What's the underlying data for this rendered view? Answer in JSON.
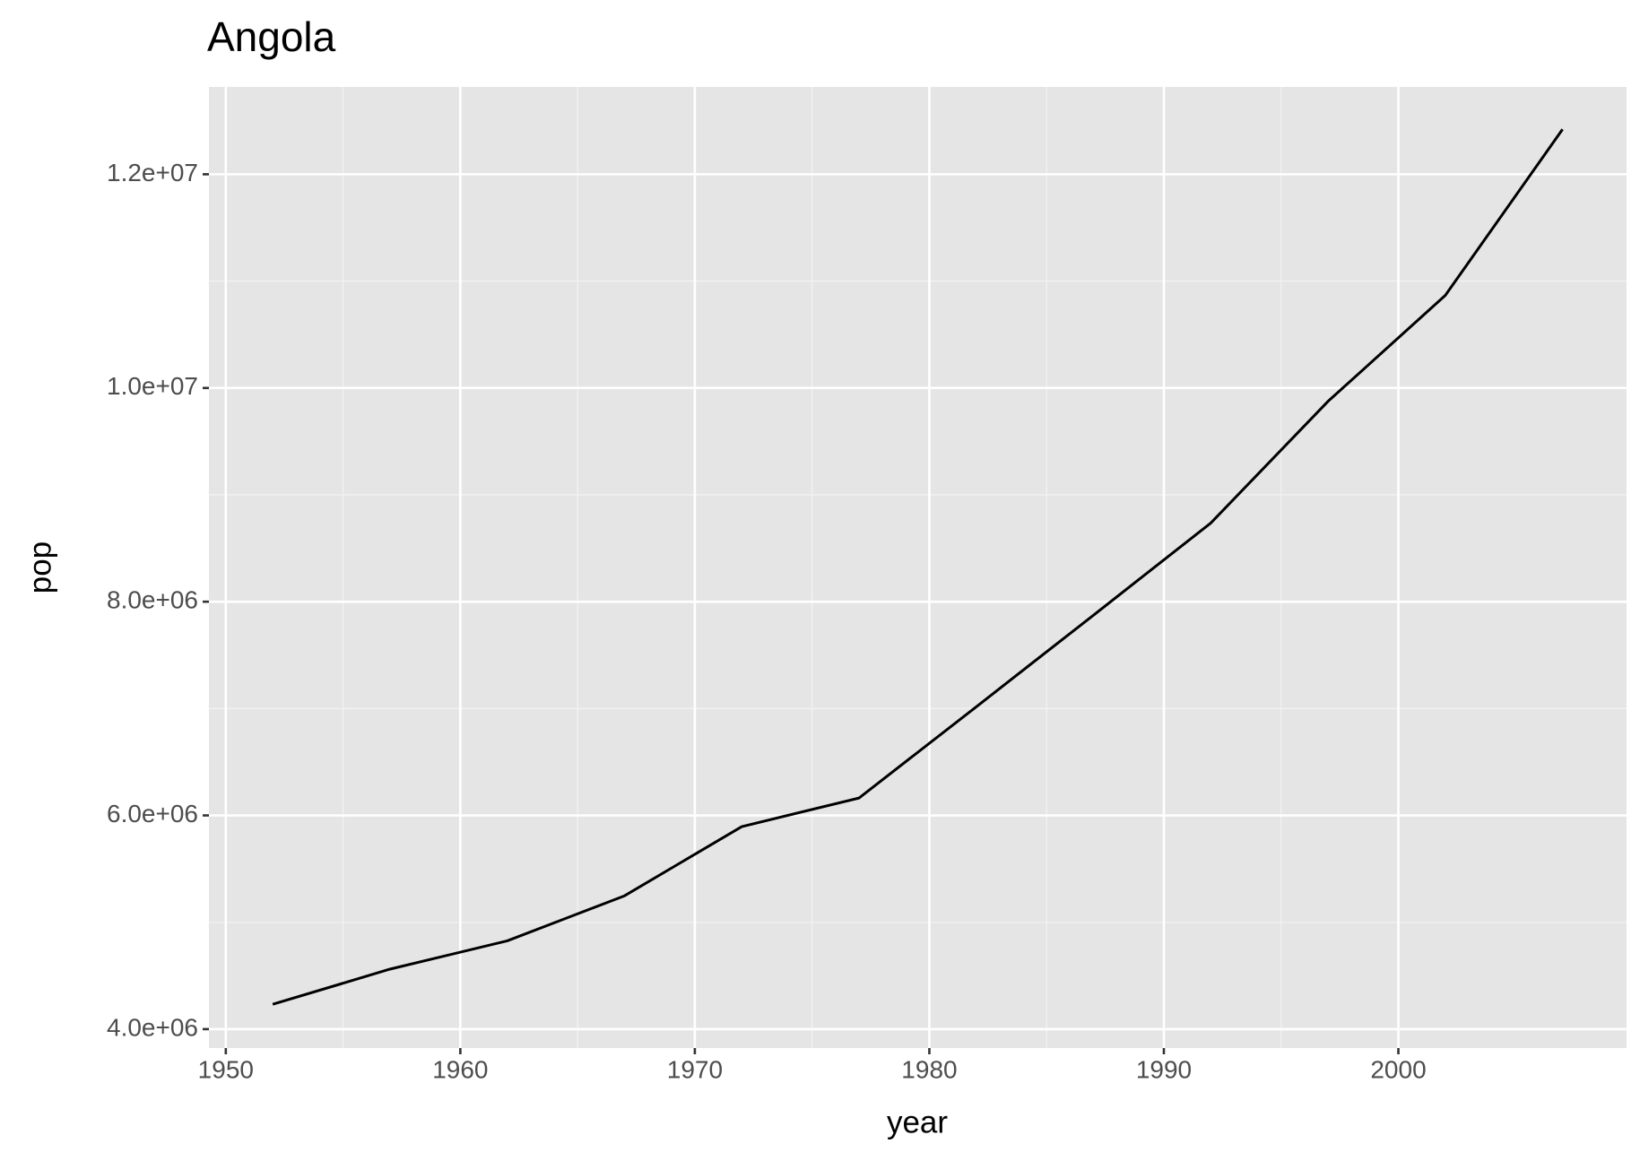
{
  "chart_data": {
    "type": "line",
    "title": "Angola",
    "x_label": "year",
    "y_label": "pop",
    "x": [
      1952,
      1957,
      1962,
      1967,
      1972,
      1977,
      1982,
      1987,
      1992,
      1997,
      2002,
      2007
    ],
    "series": [
      {
        "name": "pop",
        "color": "#000000",
        "values": [
          4232095,
          4561361,
          4826015,
          5247469,
          5894858,
          6162675,
          7016384,
          7874230,
          8735988,
          9875024,
          10866106,
          12420476
        ]
      }
    ],
    "xlim": [
      1949.28,
      2009.73
    ],
    "xticks": [
      1950,
      1960,
      1970,
      1980,
      1990,
      2000
    ],
    "ylim": [
      3823000,
      12817000
    ],
    "yticks": [
      {
        "value": 4000000,
        "label": "4.0e+06"
      },
      {
        "value": 6000000,
        "label": "6.0e+06"
      },
      {
        "value": 8000000,
        "label": "8.0e+06"
      },
      {
        "value": 10000000,
        "label": "1.0e+07"
      },
      {
        "value": 12000000,
        "label": "1.2e+07"
      }
    ],
    "grid": true
  }
}
